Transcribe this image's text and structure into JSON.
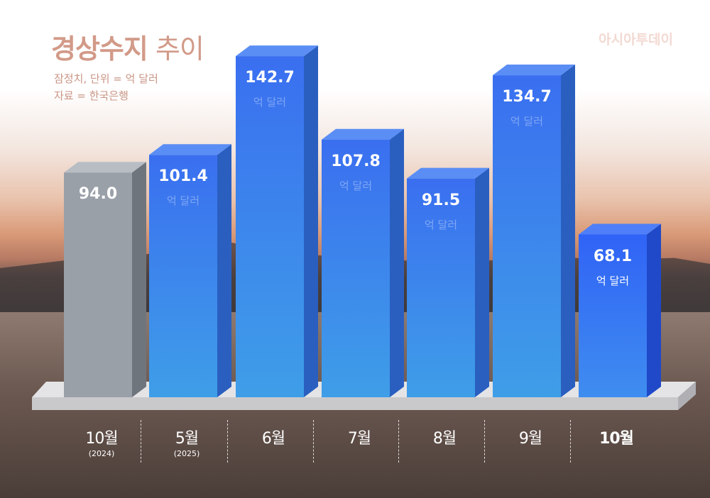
{
  "title_bold": "경상수지",
  "title_rest": "추이",
  "note_line1": "잠정치, 단위 = 억 달러",
  "note_line2": "자료 = 한국은행",
  "logo": "아시아투데이",
  "chart_data": {
    "type": "bar",
    "title": "경상수지 추이",
    "unit": "억 달러",
    "categories": [
      "10월",
      "5월",
      "6월",
      "7월",
      "8월",
      "9월",
      "10월"
    ],
    "category_years": [
      "(2024)",
      "(2025)",
      "",
      "",
      "",
      "",
      ""
    ],
    "values": [
      94.0,
      101.4,
      142.7,
      107.8,
      91.5,
      134.7,
      68.1
    ],
    "value_labels": [
      "94.0",
      "101.4",
      "142.7",
      "107.8",
      "91.5",
      "134.7",
      "68.1"
    ],
    "unit_labels": [
      "",
      "억 달러",
      "억 달러",
      "억 달러",
      "억 달러",
      "억 달러",
      "억 달러"
    ],
    "colors": {
      "previous_year": "#9aa0a8",
      "current": "#3d7ff0",
      "latest": "#3366f5"
    },
    "highlight_index": 6,
    "grid": false
  }
}
